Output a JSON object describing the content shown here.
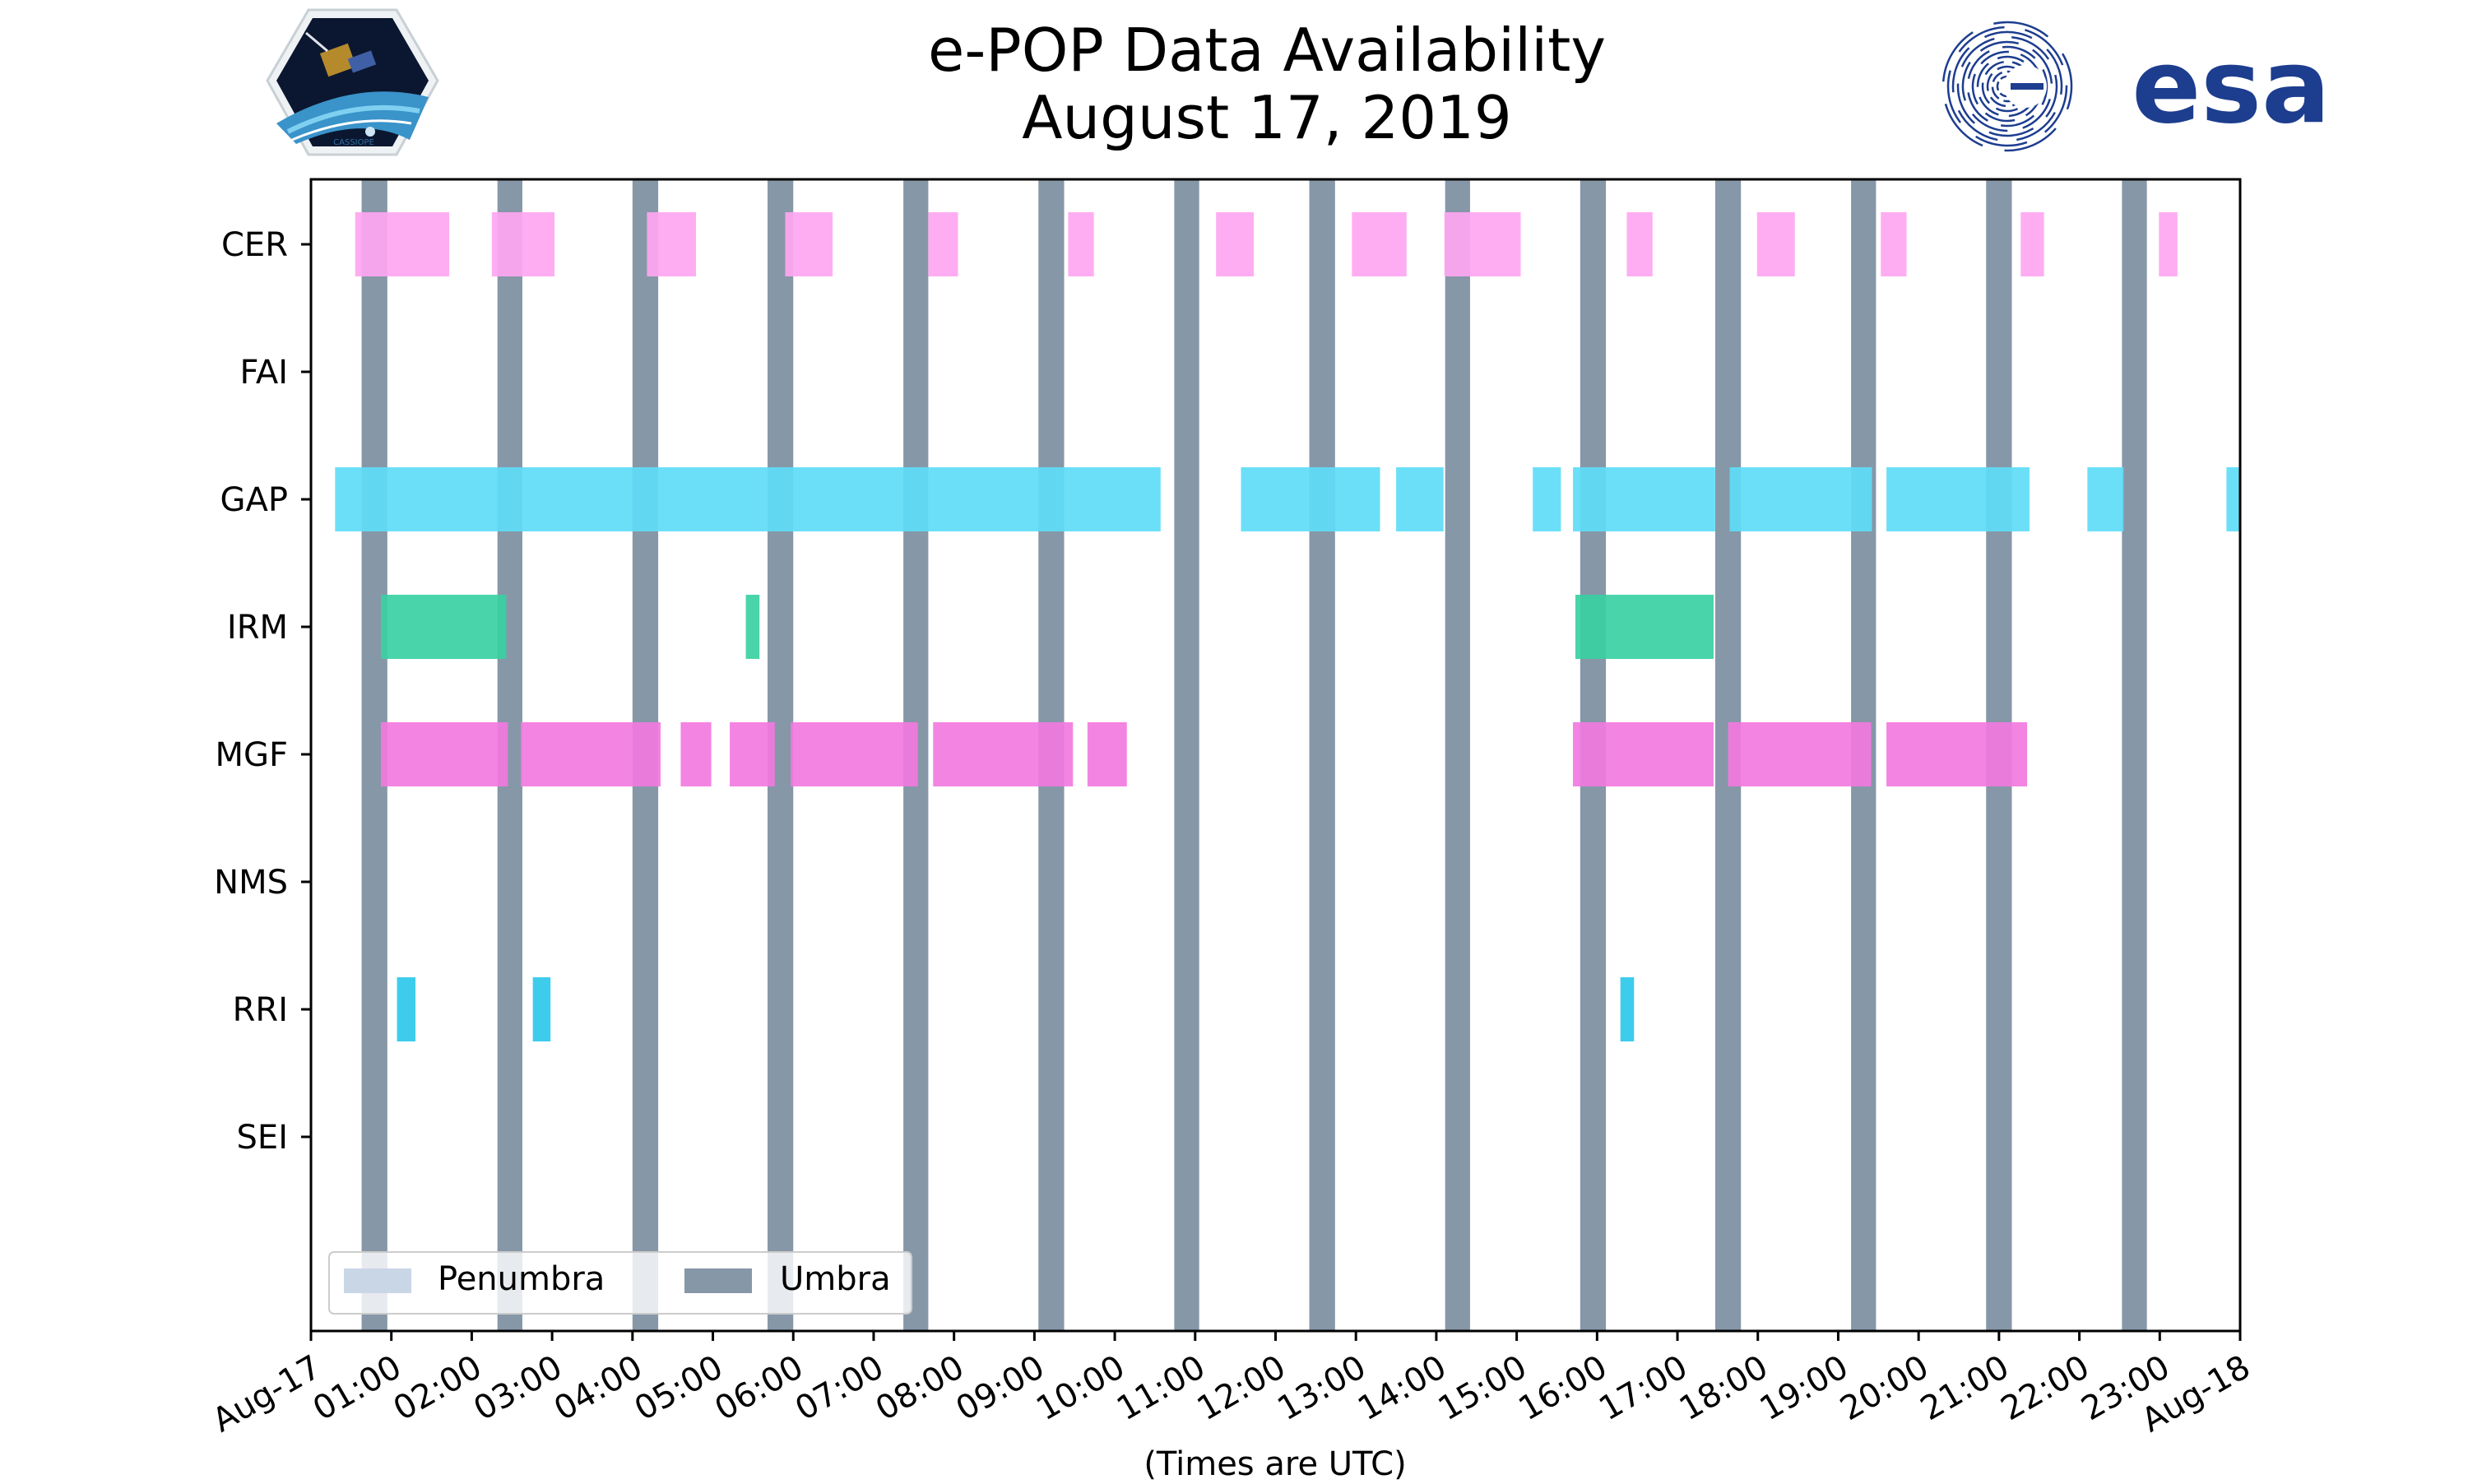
{
  "title_line1": "e-POP Data Availability",
  "title_line2": "August 17, 2019",
  "logos": {
    "left": {
      "name": "cassiope-mission-logo",
      "text": "CASSIOPE"
    },
    "right": {
      "name": "esa-logo",
      "text": "esa"
    }
  },
  "colors": {
    "umbra": "#8697a8",
    "penumbra": "#c9d6e6",
    "CER": "#ffa6f1",
    "GAP": "#5fdcf7",
    "GAP_dark": "#44d3f5",
    "IRM": "#3ad0a3",
    "MGF": "#f27ae0",
    "MGF_dark": "#f061db",
    "RRI": "#2ec8ea",
    "esa_blue": "#1d3d8f"
  },
  "chart_data": {
    "type": "timeline",
    "x_unit": "hours UTC on August 17, 2019",
    "xlim": [
      0,
      24
    ],
    "xlabel": "(Times are UTC)",
    "x_tick_labels": [
      "Aug-17",
      "01:00",
      "02:00",
      "03:00",
      "04:00",
      "05:00",
      "06:00",
      "07:00",
      "08:00",
      "09:00",
      "10:00",
      "11:00",
      "12:00",
      "13:00",
      "14:00",
      "15:00",
      "16:00",
      "17:00",
      "18:00",
      "19:00",
      "20:00",
      "21:00",
      "22:00",
      "23:00",
      "Aug-18"
    ],
    "instruments": [
      "CER",
      "FAI",
      "GAP",
      "IRM",
      "MGF",
      "NMS",
      "RRI",
      "SEI"
    ],
    "umbra_intervals": [
      [
        0.63,
        0.95
      ],
      [
        2.32,
        2.63
      ],
      [
        4.0,
        4.32
      ],
      [
        5.68,
        6.0
      ],
      [
        7.37,
        7.68
      ],
      [
        9.05,
        9.37
      ],
      [
        10.74,
        11.05
      ],
      [
        12.42,
        12.74
      ],
      [
        14.11,
        14.42
      ],
      [
        15.79,
        16.11
      ],
      [
        17.47,
        17.79
      ],
      [
        19.16,
        19.47
      ],
      [
        20.84,
        21.16
      ],
      [
        22.53,
        22.84
      ]
    ],
    "availability": {
      "CER": [
        [
          0.55,
          1.72
        ],
        [
          2.25,
          3.03
        ],
        [
          4.18,
          4.79
        ],
        [
          5.9,
          6.49
        ],
        [
          7.68,
          8.05
        ],
        [
          9.42,
          9.74
        ],
        [
          11.26,
          11.73
        ],
        [
          12.95,
          13.63
        ],
        [
          14.1,
          15.05
        ],
        [
          16.37,
          16.69
        ],
        [
          17.99,
          18.46
        ],
        [
          19.53,
          19.85
        ],
        [
          21.27,
          21.56
        ],
        [
          22.99,
          23.22
        ]
      ],
      "FAI": [],
      "GAP": [
        [
          0.3,
          10.57
        ],
        [
          11.57,
          13.3
        ],
        [
          13.5,
          14.09
        ],
        [
          15.2,
          15.55
        ],
        [
          15.7,
          17.47
        ],
        [
          17.65,
          19.42
        ],
        [
          19.6,
          21.38
        ],
        [
          22.1,
          22.55
        ],
        [
          23.83,
          24.0
        ]
      ],
      "IRM": [
        [
          0.87,
          2.43
        ],
        [
          5.41,
          5.58
        ],
        [
          15.73,
          17.45
        ]
      ],
      "MGF": [
        [
          0.87,
          2.45
        ],
        [
          2.61,
          4.35
        ],
        [
          4.6,
          4.98
        ],
        [
          5.21,
          5.77
        ],
        [
          5.97,
          7.55
        ],
        [
          7.74,
          9.48
        ],
        [
          9.66,
          10.15
        ],
        [
          15.7,
          17.45
        ],
        [
          17.63,
          19.41
        ],
        [
          19.6,
          21.35
        ]
      ],
      "NMS": [],
      "RRI": [
        [
          1.07,
          1.3
        ],
        [
          2.76,
          2.98
        ],
        [
          16.29,
          16.46
        ]
      ],
      "SEI": []
    },
    "legend": {
      "entries": [
        "Penumbra",
        "Umbra"
      ],
      "placement": "bottom-left"
    }
  }
}
